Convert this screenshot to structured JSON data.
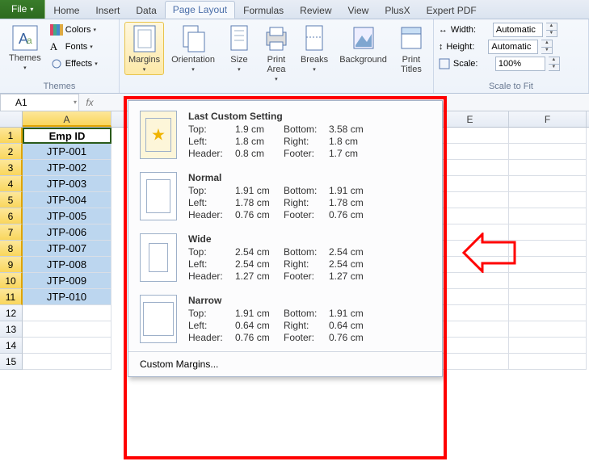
{
  "tabs": {
    "file": "File",
    "items": [
      "Home",
      "Insert",
      "Data",
      "Page Layout",
      "Formulas",
      "Review",
      "View",
      "PlusX",
      "Expert PDF"
    ],
    "active_index": 3
  },
  "ribbon": {
    "themes": {
      "label": "Themes",
      "btn": "Themes",
      "colors": "Colors",
      "fonts": "Fonts",
      "effects": "Effects"
    },
    "page_setup": {
      "margins": "Margins",
      "orientation": "Orientation",
      "size": "Size",
      "print_area": "Print\nArea",
      "breaks": "Breaks",
      "background": "Background",
      "print_titles": "Print\nTitles"
    },
    "scale": {
      "label": "Scale to Fit",
      "width": "Width:",
      "height": "Height:",
      "scale": "Scale:",
      "auto": "Automatic",
      "pct": "100%"
    }
  },
  "namebox": "A1",
  "columns": {
    "A": 110,
    "E": 96,
    "F": 96
  },
  "col_A": {
    "header": "Emp ID",
    "rows": [
      "JTP-001",
      "JTP-002",
      "JTP-003",
      "JTP-004",
      "JTP-005",
      "JTP-006",
      "JTP-007",
      "JTP-008",
      "JTP-009",
      "JTP-010"
    ]
  },
  "row_count": 15,
  "margins_menu": {
    "options": [
      {
        "title": "Last Custom Setting",
        "thumb": "star",
        "vals": {
          "Top:": "1.9 cm",
          "Bottom:": "3.58 cm",
          "Left:": "1.8 cm",
          "Right:": "1.8 cm",
          "Header:": "0.8 cm",
          "Footer:": "1.7 cm"
        },
        "inset": [
          8,
          6,
          8,
          6
        ]
      },
      {
        "title": "Normal",
        "thumb": "normal",
        "vals": {
          "Top:": "1.91 cm",
          "Bottom:": "1.91 cm",
          "Left:": "1.78 cm",
          "Right:": "1.78 cm",
          "Header:": "0.76 cm",
          "Footer:": "0.76 cm"
        },
        "inset": [
          8,
          7,
          8,
          7
        ]
      },
      {
        "title": "Wide",
        "thumb": "wide",
        "vals": {
          "Top:": "2.54 cm",
          "Bottom:": "2.54 cm",
          "Left:": "2.54 cm",
          "Right:": "2.54 cm",
          "Header:": "1.27 cm",
          "Footer:": "1.27 cm"
        },
        "inset": [
          11,
          10,
          11,
          10
        ]
      },
      {
        "title": "Narrow",
        "thumb": "narrow",
        "vals": {
          "Top:": "1.91 cm",
          "Bottom:": "1.91 cm",
          "Left:": "0.64 cm",
          "Right:": "0.64 cm",
          "Header:": "0.76 cm",
          "Footer:": "0.76 cm"
        },
        "inset": [
          8,
          3,
          8,
          3
        ]
      }
    ],
    "custom": "Custom Margins..."
  },
  "colors": {
    "selected_bg_top": "#fef7df",
    "selected_bg_bot": "#fde9a8",
    "selected_border": "#e8c44c",
    "data_fill": "#bcd6ef",
    "hdr_sel_top": "#fde79a",
    "hdr_sel_bot": "#f9d65c",
    "red": "#ff0000"
  }
}
